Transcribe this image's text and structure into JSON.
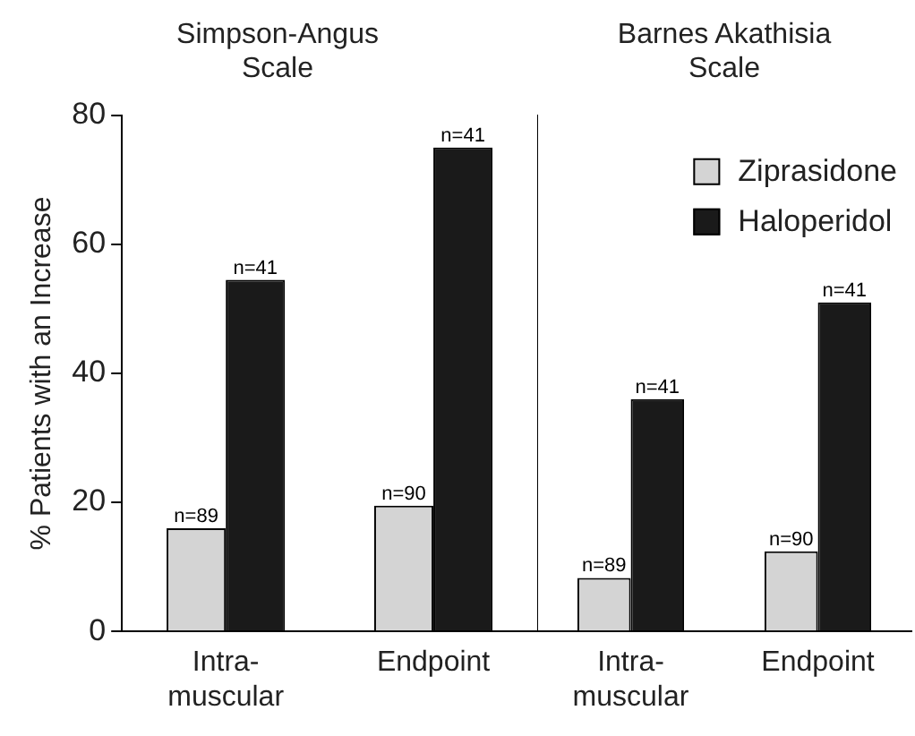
{
  "chart_data": [
    {
      "type": "bar",
      "title": "Simpson-Angus\nScale",
      "ylabel": "% Patients with an Increase",
      "categories": [
        "Intra-\nmuscular",
        "Endpoint"
      ],
      "series": [
        {
          "color": "#d4d4d4",
          "values": [
            16,
            19.5
          ]
        },
        {
          "color": "#1a1a1a",
          "values": [
            54.5,
            75
          ]
        }
      ],
      "annotations": [
        {
          "text": "n=89",
          "x": "Intra-\nmuscular",
          "y": 16
        },
        {
          "text": "n=90",
          "x": "Endpoint",
          "y": 19.5
        },
        {
          "text": "n=41",
          "x": "Intra-\nmuscular",
          "y": 54.5
        },
        {
          "text": "n=41",
          "x": "Endpoint",
          "y": 75
        }
      ],
      "ylim": [
        0,
        80
      ],
      "yticks": [
        0,
        20,
        40,
        60,
        80
      ],
      "grid": false,
      "legend": false
    },
    {
      "type": "bar",
      "title": "Barnes Akathisia\nScale",
      "categories": [
        "Intra-\nmuscular",
        "Endpoint"
      ],
      "series": [
        {
          "name": "Ziprasidone",
          "color": "#d4d4d4",
          "values": [
            8.3,
            12.4
          ]
        },
        {
          "name": "Haloperidol",
          "color": "#1a1a1a",
          "values": [
            36,
            51
          ]
        }
      ],
      "annotations": [
        {
          "text": "n=89",
          "x": "Intra-\nmuscular",
          "y": 8.3
        },
        {
          "text": "n=90",
          "x": "Endpoint",
          "y": 12.4
        },
        {
          "text": "n=41",
          "x": "Intra-\nmuscular",
          "y": 36
        },
        {
          "text": "n=41",
          "x": "Endpoint",
          "y": 51
        }
      ],
      "ylim": [
        0,
        80
      ],
      "yticks": [
        0,
        20,
        40,
        60,
        80
      ],
      "grid": false,
      "legend": "top right",
      "tick_labels": "x"
    }
  ]
}
